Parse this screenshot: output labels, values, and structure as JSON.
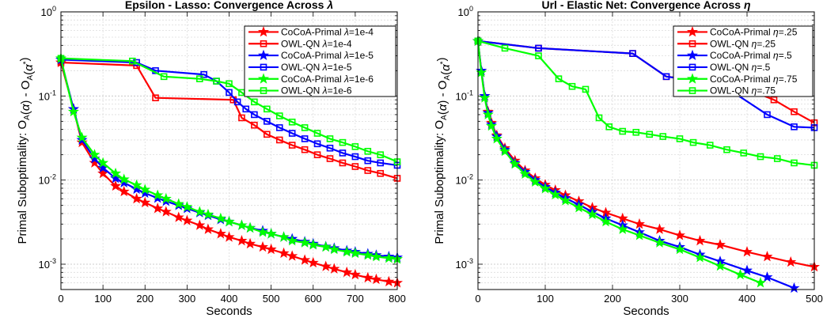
{
  "chart_data": [
    {
      "type": "line",
      "title": "Epsilon - Lasso: Convergence Across λ",
      "xlabel": "Seconds",
      "ylabel": "Primal Suboptimality: O_A(α) - O_A(α*)",
      "xlim": [
        0,
        800
      ],
      "ylim": [
        0.0005,
        1
      ],
      "yscale": "log",
      "grid": true,
      "legend_position": "top-right",
      "xticks": [
        "0",
        "100",
        "200",
        "300",
        "400",
        "500",
        "600",
        "700",
        "800"
      ],
      "yticks": [
        "10-3",
        "10-2",
        "10-1",
        "100"
      ],
      "series": [
        {
          "name": "CoCoA-Primal λ=1e-4",
          "color": "#ff0000",
          "marker": "star",
          "x": [
            0,
            30,
            50,
            80,
            100,
            130,
            150,
            180,
            200,
            230,
            250,
            280,
            300,
            330,
            350,
            380,
            400,
            430,
            450,
            480,
            500,
            530,
            550,
            580,
            600,
            630,
            650,
            680,
            700,
            730,
            750,
            780,
            800
          ],
          "y": [
            0.25,
            0.07,
            0.028,
            0.016,
            0.012,
            0.0085,
            0.0073,
            0.006,
            0.0054,
            0.0046,
            0.0042,
            0.0036,
            0.0033,
            0.0029,
            0.0026,
            0.0023,
            0.0021,
            0.0019,
            0.00175,
            0.0016,
            0.0015,
            0.00135,
            0.00125,
            0.00112,
            0.00104,
            0.00094,
            0.00088,
            0.0008,
            0.00075,
            0.00069,
            0.00066,
            0.00062,
            0.0006
          ]
        },
        {
          "name": "OWL-QN λ=1e-4",
          "color": "#ff0000",
          "marker": "square",
          "x": [
            0,
            180,
            225,
            410,
            430,
            460,
            490,
            520,
            550,
            580,
            610,
            640,
            670,
            700,
            730,
            760,
            800
          ],
          "y": [
            0.25,
            0.23,
            0.095,
            0.09,
            0.055,
            0.045,
            0.035,
            0.03,
            0.026,
            0.023,
            0.02,
            0.018,
            0.016,
            0.0145,
            0.013,
            0.012,
            0.0105
          ]
        },
        {
          "name": "CoCoA-Primal λ=1e-5",
          "color": "#0000ff",
          "marker": "star",
          "x": [
            0,
            30,
            50,
            80,
            100,
            130,
            150,
            180,
            200,
            230,
            250,
            280,
            300,
            330,
            350,
            380,
            400,
            430,
            450,
            480,
            500,
            530,
            550,
            580,
            600,
            630,
            650,
            680,
            700,
            730,
            750,
            780,
            800
          ],
          "y": [
            0.27,
            0.07,
            0.03,
            0.018,
            0.014,
            0.0105,
            0.0093,
            0.0078,
            0.007,
            0.0061,
            0.0056,
            0.005,
            0.0046,
            0.0041,
            0.0038,
            0.0034,
            0.0032,
            0.0029,
            0.0027,
            0.0025,
            0.0023,
            0.0021,
            0.002,
            0.00185,
            0.00175,
            0.00162,
            0.00155,
            0.00145,
            0.0014,
            0.00133,
            0.00128,
            0.00123,
            0.0012
          ]
        },
        {
          "name": "OWL-QN λ=1e-5",
          "color": "#0000ff",
          "marker": "square",
          "x": [
            0,
            180,
            225,
            340,
            370,
            400,
            420,
            440,
            460,
            490,
            520,
            550,
            580,
            610,
            640,
            670,
            700,
            730,
            760,
            800
          ],
          "y": [
            0.27,
            0.25,
            0.2,
            0.18,
            0.15,
            0.11,
            0.085,
            0.07,
            0.06,
            0.05,
            0.042,
            0.036,
            0.031,
            0.027,
            0.024,
            0.021,
            0.019,
            0.017,
            0.016,
            0.015
          ]
        },
        {
          "name": "CoCoA-Primal λ=1e-6",
          "color": "#00ff00",
          "marker": "star",
          "x": [
            0,
            30,
            50,
            80,
            100,
            130,
            150,
            180,
            200,
            230,
            250,
            280,
            300,
            330,
            350,
            380,
            400,
            430,
            450,
            480,
            500,
            530,
            550,
            580,
            600,
            630,
            650,
            680,
            700,
            730,
            750,
            780,
            800
          ],
          "y": [
            0.28,
            0.065,
            0.032,
            0.02,
            0.016,
            0.012,
            0.0102,
            0.0087,
            0.0077,
            0.0066,
            0.006,
            0.0052,
            0.0048,
            0.0042,
            0.0039,
            0.0035,
            0.0032,
            0.0029,
            0.0027,
            0.0024,
            0.0023,
            0.0021,
            0.0019,
            0.0018,
            0.0017,
            0.0016,
            0.0015,
            0.0014,
            0.00135,
            0.00128,
            0.00123,
            0.00118,
            0.00115
          ]
        },
        {
          "name": "OWL-QN λ=1e-6",
          "color": "#00ff00",
          "marker": "square",
          "x": [
            0,
            170,
            245,
            330,
            370,
            400,
            430,
            460,
            490,
            520,
            550,
            580,
            610,
            640,
            670,
            700,
            730,
            760,
            800
          ],
          "y": [
            0.28,
            0.26,
            0.17,
            0.16,
            0.15,
            0.14,
            0.11,
            0.085,
            0.07,
            0.058,
            0.049,
            0.042,
            0.036,
            0.031,
            0.028,
            0.025,
            0.022,
            0.02,
            0.0165
          ]
        }
      ]
    },
    {
      "type": "line",
      "title": "Url - Elastic Net: Convergence Across η",
      "xlabel": "Seconds",
      "ylabel": "Primal Suboptimality: O_A(α) - O_A(α*)",
      "xlim": [
        0,
        500
      ],
      "ylim": [
        0.0005,
        1
      ],
      "yscale": "log",
      "grid": true,
      "legend_position": "top-right",
      "xticks": [
        "0",
        "100",
        "200",
        "300",
        "400",
        "500"
      ],
      "yticks": [
        "10-3",
        "10-2",
        "10-1",
        "100"
      ],
      "series": [
        {
          "name": "CoCoA-Primal η=.25",
          "color": "#ff0000",
          "marker": "star",
          "x": [
            0,
            5,
            10,
            15,
            20,
            28,
            40,
            55,
            70,
            85,
            100,
            115,
            130,
            150,
            170,
            190,
            215,
            240,
            270,
            300,
            330,
            360,
            400,
            430,
            465,
            500
          ],
          "y": [
            0.45,
            0.2,
            0.1,
            0.065,
            0.048,
            0.034,
            0.024,
            0.017,
            0.013,
            0.0105,
            0.0088,
            0.0076,
            0.0066,
            0.0056,
            0.0047,
            0.0041,
            0.0035,
            0.003,
            0.0026,
            0.0022,
            0.0019,
            0.0017,
            0.0014,
            0.00123,
            0.00106,
            0.00093
          ]
        },
        {
          "name": "OWL-QN η=.25",
          "color": "#ff0000",
          "marker": "square",
          "x": [
            0,
            90,
            230,
            280,
            340,
            390,
            440,
            470,
            500
          ],
          "y": [
            0.45,
            0.37,
            0.32,
            0.17,
            0.15,
            0.13,
            0.09,
            0.065,
            0.048
          ]
        },
        {
          "name": "CoCoA-Primal η=.5",
          "color": "#0000ff",
          "marker": "star",
          "x": [
            0,
            5,
            10,
            15,
            20,
            28,
            40,
            55,
            70,
            85,
            100,
            115,
            130,
            150,
            170,
            190,
            215,
            240,
            270,
            300,
            330,
            360,
            400,
            430,
            470
          ],
          "y": [
            0.45,
            0.2,
            0.1,
            0.063,
            0.046,
            0.033,
            0.023,
            0.016,
            0.0125,
            0.01,
            0.0083,
            0.0071,
            0.0061,
            0.0051,
            0.0042,
            0.0035,
            0.0029,
            0.0024,
            0.0019,
            0.0016,
            0.0013,
            0.00108,
            0.00084,
            0.0007,
            0.00052
          ]
        },
        {
          "name": "OWL-QN η=.5",
          "color": "#0000ff",
          "marker": "square",
          "x": [
            0,
            90,
            230,
            280,
            330,
            380,
            430,
            470,
            500
          ],
          "y": [
            0.45,
            0.37,
            0.32,
            0.17,
            0.15,
            0.11,
            0.06,
            0.043,
            0.042
          ]
        },
        {
          "name": "CoCoA-Primal η=.75",
          "color": "#00ff00",
          "marker": "star",
          "x": [
            0,
            5,
            10,
            15,
            20,
            28,
            40,
            55,
            70,
            85,
            100,
            115,
            130,
            150,
            170,
            190,
            215,
            240,
            270,
            300,
            330,
            360,
            390,
            420
          ],
          "y": [
            0.45,
            0.19,
            0.095,
            0.06,
            0.044,
            0.031,
            0.022,
            0.0155,
            0.0118,
            0.0095,
            0.0079,
            0.0067,
            0.0057,
            0.0047,
            0.0039,
            0.0032,
            0.0026,
            0.0022,
            0.0018,
            0.0015,
            0.0012,
            0.00095,
            0.00075,
            0.0006
          ]
        },
        {
          "name": "OWL-QN η=.75",
          "color": "#00ff00",
          "marker": "square",
          "x": [
            0,
            40,
            90,
            120,
            140,
            160,
            180,
            195,
            215,
            235,
            255,
            275,
            300,
            320,
            345,
            370,
            395,
            420,
            445,
            470,
            500
          ],
          "y": [
            0.45,
            0.37,
            0.3,
            0.16,
            0.13,
            0.12,
            0.055,
            0.043,
            0.038,
            0.037,
            0.035,
            0.033,
            0.031,
            0.028,
            0.026,
            0.023,
            0.021,
            0.019,
            0.018,
            0.016,
            0.015
          ]
        }
      ]
    }
  ]
}
